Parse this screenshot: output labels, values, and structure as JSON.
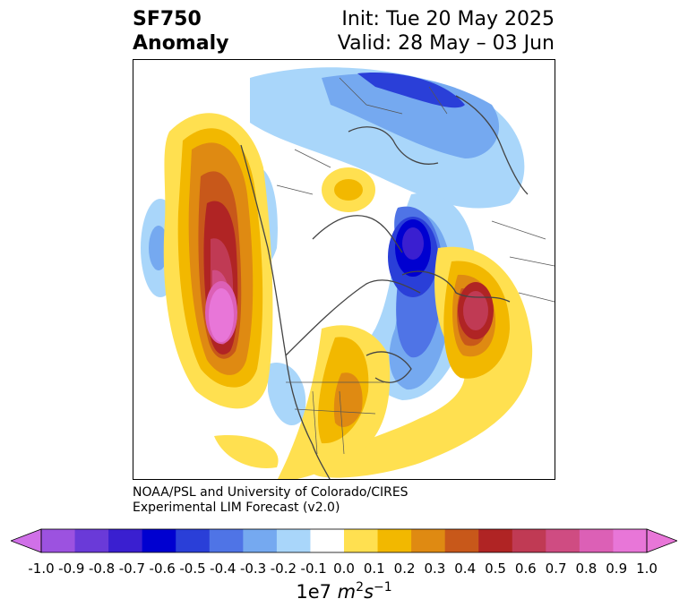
{
  "title": {
    "left_line1": "SF750",
    "left_line2": "Anomaly",
    "right_line1": "Init: Tue 20 May 2025",
    "right_line2": "Valid: 28 May – 03 Jun"
  },
  "credit": {
    "line1": "NOAA/PSL and University of Colorado/CIRES",
    "line2": "Experimental LIM Forecast (v2.0)"
  },
  "colorbar": {
    "ticks": [
      "-1.0",
      "-0.9",
      "-0.8",
      "-0.7",
      "-0.6",
      "-0.5",
      "-0.4",
      "-0.3",
      "-0.2",
      "-0.1",
      "0.0",
      "0.1",
      "0.2",
      "0.3",
      "0.4",
      "0.5",
      "0.6",
      "0.7",
      "0.8",
      "0.9",
      "1.0"
    ],
    "colors": [
      "#9c52e0",
      "#6a3ad8",
      "#3a1fd0",
      "#0000d0",
      "#2a3fd8",
      "#4f74e6",
      "#75a9f0",
      "#a9d6fa",
      "#ffffff",
      "#ffe050",
      "#f2b800",
      "#df8a12",
      "#c8581a",
      "#b02424",
      "#c03a54",
      "#cf4c82",
      "#dc60b6",
      "#e876d8"
    ],
    "under_color": "#d070e8",
    "over_color": "#e876d8",
    "unit_prefix": "1e7",
    "unit_m": "m",
    "unit_m_exp": "2",
    "unit_s": "s",
    "unit_s_exp": "−1"
  }
}
